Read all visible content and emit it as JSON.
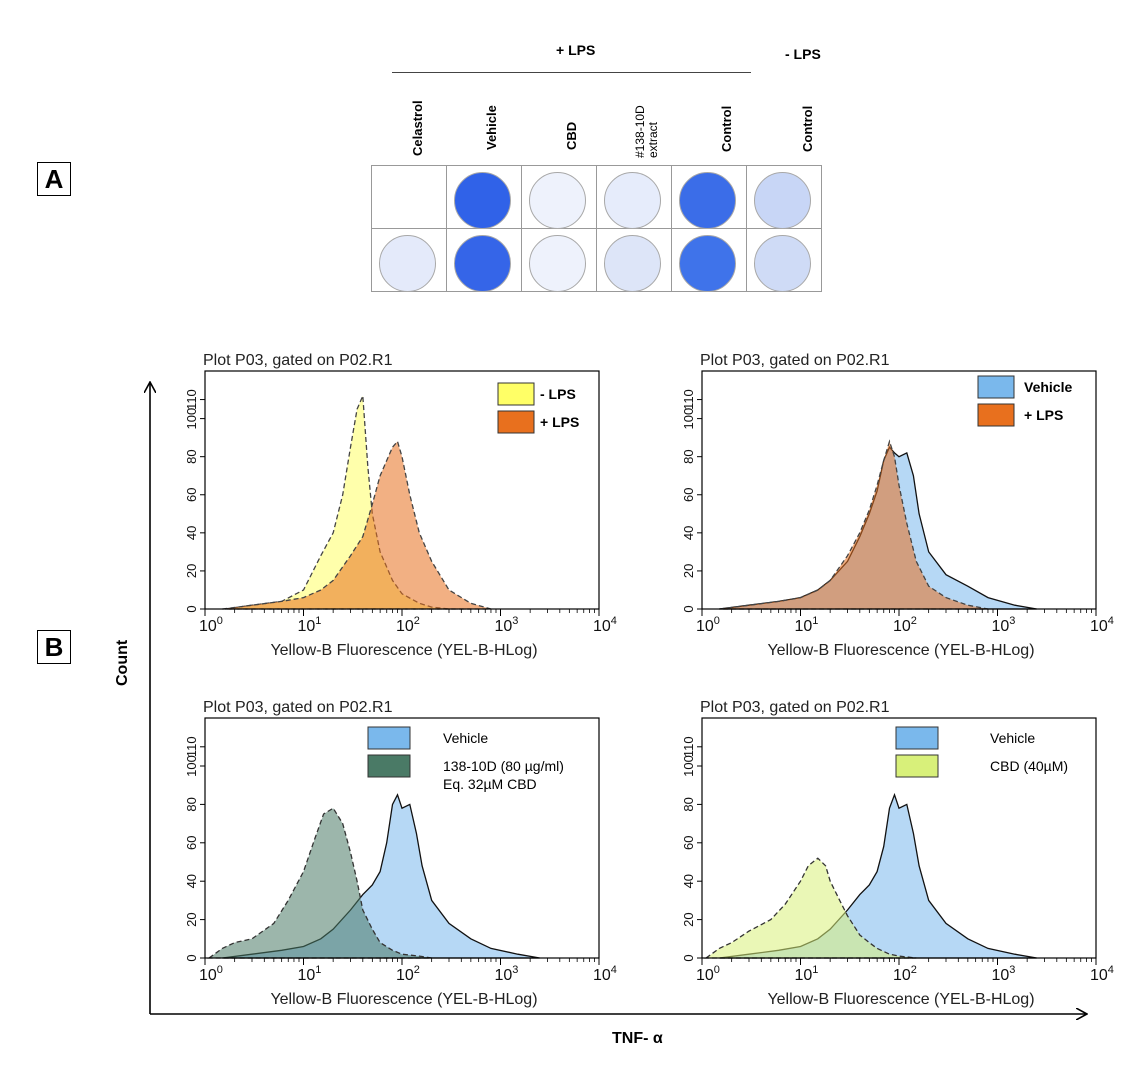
{
  "panels": {
    "a": "A",
    "b": "B"
  },
  "plate": {
    "group_plus": "+ LPS",
    "group_minus": "- LPS",
    "columns": [
      "Celastrol",
      "Vehicle",
      "CBD",
      "#138-10D\nextract",
      "Control",
      "Control"
    ],
    "wells": [
      [
        "none",
        "#3062e8",
        "#eef2fc",
        "#e6ecfb",
        "#3b6de8",
        "#c8d6f6"
      ],
      [
        "#e4eafa",
        "#3565e8",
        "#eef2fc",
        "#dde5f8",
        "#3f73ea",
        "#cfdbf6"
      ]
    ]
  },
  "figure_axes": {
    "y_label": "Count",
    "x_label": "TNF- α"
  },
  "chart_data": [
    {
      "type": "area",
      "title": "Plot P03, gated on P02.R1",
      "xlabel": "Yellow-B Fluorescence (YEL-B-HLog)",
      "ylabel": "Count",
      "xscale": "log",
      "xlim": [
        1,
        10000
      ],
      "ylim": [
        0,
        125
      ],
      "y_ticks": [
        0,
        20,
        40,
        60,
        80,
        100,
        110
      ],
      "x_ticks": [
        "10^0",
        "10^1",
        "10^2",
        "10^3",
        "10^4"
      ],
      "legend_position": "top-right",
      "series": [
        {
          "name": "- LPS",
          "color": "#ffff66",
          "stroke": "#444444",
          "dashed": true,
          "x": [
            1.6,
            3,
            6,
            10,
            15,
            20,
            25,
            30,
            35,
            40,
            45,
            50,
            60,
            80,
            100,
            150,
            200,
            300,
            500
          ],
          "y": [
            0,
            2,
            4,
            10,
            28,
            40,
            60,
            85,
            105,
            112,
            75,
            50,
            30,
            15,
            8,
            3,
            1,
            0,
            0
          ]
        },
        {
          "name": "+ LPS",
          "color": "#e8701e",
          "stroke": "#444444",
          "dashed": true,
          "x": [
            1.5,
            3,
            6,
            10,
            15,
            20,
            30,
            40,
            50,
            60,
            70,
            80,
            90,
            100,
            120,
            150,
            200,
            300,
            500,
            800
          ],
          "y": [
            0,
            2,
            4,
            6,
            10,
            15,
            28,
            38,
            55,
            70,
            78,
            85,
            88,
            80,
            60,
            40,
            25,
            10,
            3,
            0
          ]
        }
      ]
    },
    {
      "type": "area",
      "title": "Plot P03, gated on P02.R1",
      "xlabel": "Yellow-B Fluorescence (YEL-B-HLog)",
      "ylabel": "Count",
      "xscale": "log",
      "xlim": [
        1,
        10000
      ],
      "ylim": [
        0,
        125
      ],
      "y_ticks": [
        0,
        20,
        40,
        60,
        80,
        100,
        110
      ],
      "x_ticks": [
        "10^0",
        "10^1",
        "10^2",
        "10^3",
        "10^4"
      ],
      "legend_position": "top-right",
      "series": [
        {
          "name": "Vehicle",
          "color": "#7ab8ec",
          "stroke": "#111111",
          "dashed": false,
          "x": [
            1.5,
            3,
            6,
            10,
            15,
            20,
            30,
            40,
            50,
            60,
            70,
            80,
            90,
            100,
            120,
            140,
            160,
            200,
            300,
            500,
            800,
            1500,
            2500
          ],
          "y": [
            0,
            2,
            4,
            6,
            10,
            15,
            25,
            38,
            50,
            62,
            78,
            85,
            82,
            80,
            82,
            70,
            50,
            30,
            18,
            12,
            6,
            2,
            0
          ]
        },
        {
          "name": "+ LPS",
          "color": "#e8701e",
          "stroke": "#444444",
          "dashed": true,
          "x": [
            1.5,
            3,
            6,
            10,
            15,
            20,
            30,
            40,
            50,
            60,
            70,
            80,
            90,
            100,
            120,
            150,
            200,
            300,
            500,
            800
          ],
          "y": [
            0,
            2,
            4,
            6,
            10,
            15,
            28,
            40,
            52,
            65,
            78,
            88,
            80,
            65,
            45,
            25,
            12,
            6,
            2,
            0
          ]
        }
      ]
    },
    {
      "type": "area",
      "title": "Plot P03, gated on P02.R1",
      "xlabel": "Yellow-B Fluorescence (YEL-B-HLog)",
      "ylabel": "Count",
      "xscale": "log",
      "xlim": [
        1,
        10000
      ],
      "ylim": [
        0,
        125
      ],
      "y_ticks": [
        0,
        20,
        40,
        60,
        80,
        100,
        110
      ],
      "x_ticks": [
        "10^0",
        "10^1",
        "10^2",
        "10^3",
        "10^4"
      ],
      "legend_position": "top-right",
      "series": [
        {
          "name": "Vehicle",
          "color": "#7ab8ec",
          "stroke": "#111111",
          "dashed": false,
          "x": [
            1.5,
            3,
            6,
            10,
            15,
            20,
            30,
            40,
            50,
            60,
            70,
            80,
            90,
            100,
            120,
            140,
            160,
            200,
            300,
            500,
            800,
            1500,
            2500
          ],
          "y": [
            0,
            2,
            4,
            6,
            10,
            15,
            25,
            33,
            38,
            45,
            60,
            80,
            85,
            78,
            80,
            65,
            48,
            30,
            18,
            10,
            5,
            2,
            0
          ]
        },
        {
          "name": "138-10D (80 µg/ml)",
          "name2": "Eq. 32µM CBD",
          "color": "#4a7a66",
          "stroke": "#333333",
          "dashed": true,
          "x": [
            1.1,
            1.5,
            2,
            3,
            5,
            7,
            10,
            13,
            16,
            20,
            25,
            30,
            35,
            40,
            50,
            60,
            80,
            100,
            150,
            200
          ],
          "y": [
            0,
            5,
            8,
            10,
            18,
            30,
            45,
            62,
            75,
            78,
            70,
            55,
            40,
            25,
            15,
            8,
            4,
            2,
            1,
            0
          ]
        }
      ]
    },
    {
      "type": "area",
      "title": "Plot P03, gated on P02.R1",
      "xlabel": "Yellow-B Fluorescence (YEL-B-HLog)",
      "ylabel": "Count",
      "xscale": "log",
      "xlim": [
        1,
        10000
      ],
      "ylim": [
        0,
        125
      ],
      "y_ticks": [
        0,
        20,
        40,
        60,
        80,
        100,
        110
      ],
      "x_ticks": [
        "10^0",
        "10^1",
        "10^2",
        "10^3",
        "10^4"
      ],
      "legend_position": "top-right",
      "series": [
        {
          "name": "Vehicle",
          "color": "#7ab8ec",
          "stroke": "#111111",
          "dashed": false,
          "x": [
            1.5,
            3,
            6,
            10,
            15,
            20,
            30,
            40,
            50,
            60,
            70,
            80,
            90,
            100,
            120,
            140,
            160,
            200,
            300,
            500,
            800,
            1500,
            2500
          ],
          "y": [
            0,
            2,
            4,
            6,
            10,
            15,
            25,
            33,
            38,
            45,
            58,
            78,
            85,
            78,
            80,
            65,
            48,
            30,
            18,
            10,
            5,
            2,
            0
          ]
        },
        {
          "name": "CBD (40µM)",
          "color": "#d8f07a",
          "stroke": "#333333",
          "dashed": true,
          "x": [
            1.1,
            1.5,
            2,
            3,
            5,
            7,
            10,
            12,
            15,
            18,
            20,
            25,
            30,
            40,
            50,
            60,
            80,
            100,
            150
          ],
          "y": [
            0,
            5,
            8,
            14,
            20,
            28,
            40,
            48,
            52,
            48,
            40,
            30,
            22,
            12,
            8,
            5,
            2,
            1,
            0
          ]
        }
      ]
    }
  ]
}
